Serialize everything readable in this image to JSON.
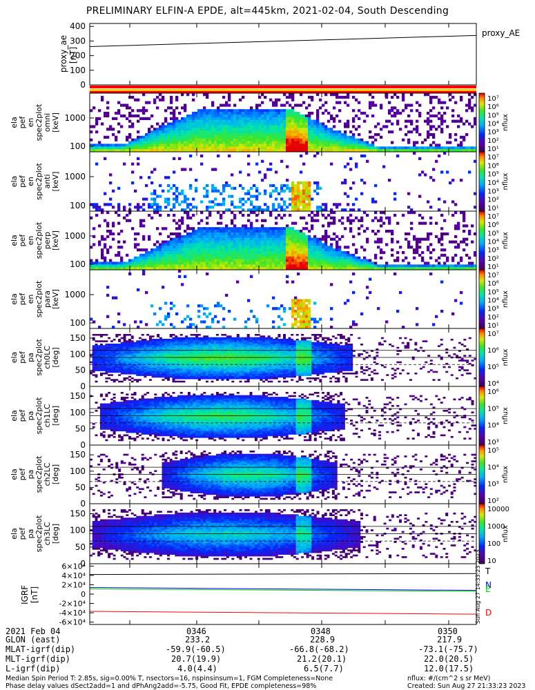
{
  "title": "PRELIMINARY ELFIN-A EPDE, alt=445km, 2021-02-04, South Descending",
  "footer": {
    "date_label": "2021 Feb 04",
    "row_labels": [
      "GLON (east)",
      "MLAT-igrf(dip)",
      "MLT-igrf(dip)",
      "L-igrf(dip)"
    ],
    "time_ticks": [
      "0346",
      "0348",
      "0350"
    ],
    "columns": [
      [
        "233.2",
        "-59.9(-60.5)",
        "20.7(19.9)",
        "4.0(4.4)"
      ],
      [
        "228.9",
        "-66.8(-68.2)",
        "21.2(20.1)",
        "6.5(7.7)"
      ],
      [
        "217.9",
        "-73.1(-75.7)",
        "22.0(20.5)",
        "12.0(17.5)"
      ]
    ],
    "note_line1": "Median Spin Period T: 2.85s, sig=0.00% T, nsectors=16, nspinsinsum=1, FGM Completeness=None",
    "note_line2": "Phase delay values dSect2add=1 and dPhAng2add=-5.75, Good Fit, EPDE completeness=98%",
    "units_note": "nflux: #/(cm^2 s sr MeV)",
    "created": "Created: Sun Aug 27 21:33:23 2023",
    "vertical_stamp": "Sun Aug 27 14:33:23 2023"
  },
  "chart_data": [
    {
      "type": "line",
      "panel": "proxy_ae",
      "ylabel": "proxy_ae [nT]",
      "legend": "proxy_AE",
      "yticks": [
        "400",
        "300",
        "200",
        "100",
        "0"
      ],
      "ylim": [
        0,
        420
      ],
      "x": [
        "0344.4",
        "0350.8"
      ],
      "values": [
        262,
        338
      ]
    },
    {
      "type": "heatmap",
      "panel": "ela pef en spec2plot omni [keV]",
      "ylabel_lines": [
        "ela",
        "pef",
        "en",
        "spec2plot",
        "omni",
        "[keV]"
      ],
      "yticks": [
        "1000",
        "100"
      ],
      "cbar_ticks": [
        "10⁷",
        "10⁶",
        "10⁵",
        "10⁴",
        "10³",
        "10²",
        "10¹"
      ],
      "cbar_label": "nflux"
    },
    {
      "type": "heatmap",
      "panel": "ela pef en spec2plot anti [keV]",
      "ylabel_lines": [
        "ela",
        "pef",
        "en",
        "spec2plot",
        "anti",
        "[keV]"
      ],
      "yticks": [
        "1000",
        "100"
      ],
      "cbar_ticks": [
        "10⁷",
        "10⁶",
        "10⁵",
        "10⁴",
        "10³",
        "10²",
        "10¹"
      ],
      "cbar_label": "nflux"
    },
    {
      "type": "heatmap",
      "panel": "ela pef en spec2plot perp [keV]",
      "ylabel_lines": [
        "ela",
        "pef",
        "en",
        "spec2plot",
        "perp",
        "[keV]"
      ],
      "yticks": [
        "1000",
        "100"
      ],
      "cbar_ticks": [
        "10⁷",
        "10⁶",
        "10⁵",
        "10⁴",
        "10³",
        "10²",
        "10¹"
      ],
      "cbar_label": "nflux"
    },
    {
      "type": "heatmap",
      "panel": "ela pef en spec2plot para [keV]",
      "ylabel_lines": [
        "ela",
        "pef",
        "en",
        "spec2plot",
        "para",
        "[keV]"
      ],
      "yticks": [
        "1000",
        "100"
      ],
      "cbar_ticks": [
        "10⁷",
        "10⁶",
        "10⁵",
        "10⁴",
        "10³",
        "10²",
        "10¹"
      ],
      "cbar_label": "nflux"
    },
    {
      "type": "heatmap",
      "panel": "ela pef pa spec2plot ch0LC [deg]",
      "ylabel_lines": [
        "ela",
        "pef",
        "pa",
        "spec2plot",
        "ch0LC",
        "[deg]"
      ],
      "yticks": [
        "150",
        "100",
        "50",
        "0"
      ],
      "cbar_ticks": [
        "10⁷",
        "10⁶",
        "10⁵",
        "10⁴"
      ],
      "cbar_label": "nflux"
    },
    {
      "type": "heatmap",
      "panel": "ela pef pa spec2plot ch1LC [deg]",
      "ylabel_lines": [
        "ela",
        "pef",
        "pa",
        "spec2plot",
        "ch1LC",
        "[deg]"
      ],
      "yticks": [
        "150",
        "100",
        "50",
        "0"
      ],
      "cbar_ticks": [
        "10⁶",
        "10⁵",
        "10⁴",
        "10³"
      ],
      "cbar_label": "nflux"
    },
    {
      "type": "heatmap",
      "panel": "ela pef pa spec2plot ch2LC [deg]",
      "ylabel_lines": [
        "ela",
        "pef",
        "pa",
        "spec2plot",
        "ch2LC",
        "[deg]"
      ],
      "yticks": [
        "150",
        "100",
        "50",
        "0"
      ],
      "cbar_ticks": [
        "10⁵",
        "10⁴",
        "10³",
        "10²"
      ],
      "cbar_label": "nflux"
    },
    {
      "type": "heatmap",
      "panel": "ela pef pa spec2plot ch3LC [deg]",
      "ylabel_lines": [
        "ela",
        "pef",
        "pa",
        "spec2plot",
        "ch3LC",
        "[deg]"
      ],
      "yticks": [
        "150",
        "100",
        "50",
        "0"
      ],
      "cbar_ticks": [
        "10000",
        "1000",
        "100",
        "10"
      ],
      "cbar_label": "nflux"
    },
    {
      "type": "line",
      "panel": "IGRF [nT]",
      "ylabel": "IGRF [nT]",
      "yticks": [
        "6×10⁴",
        "4×10⁴",
        "2×10⁴",
        "0",
        "-2×10⁴",
        "-4×10⁴",
        "-6×10⁴"
      ],
      "ylim": [
        -65000,
        65000
      ],
      "series": [
        {
          "name": "T",
          "color": "#000000",
          "values": [
            42000,
            44000
          ]
        },
        {
          "name": "N",
          "color": "#0000ff",
          "values": [
            14000,
            8000
          ]
        },
        {
          "name": "E",
          "color": "#00cc00",
          "values": [
            11000,
            6000
          ]
        },
        {
          "name": "D",
          "color": "#ff0000",
          "values": [
            -37000,
            -43000
          ]
        }
      ]
    }
  ]
}
